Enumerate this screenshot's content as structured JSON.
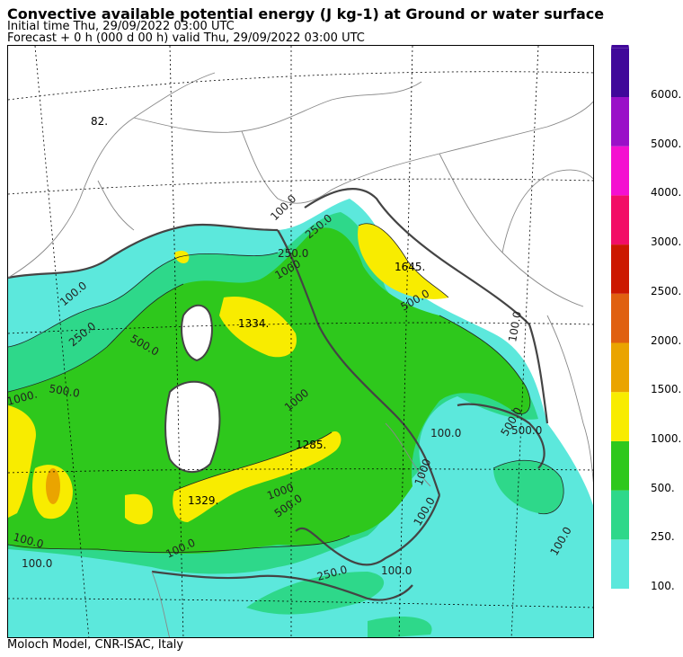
{
  "header": {
    "title": "Convective available potential energy (J kg-1) at Ground or water surface",
    "initial_time": "Initial time  Thu, 29/09/2022  03:00 UTC",
    "forecast": "Forecast  +    0 h  (000 d 00 h)  valid Thu, 29/09/2022 03:00 UTC"
  },
  "footer": {
    "credit": "Moloch Model, CNR-ISAC, Italy"
  },
  "colorbar": {
    "levels": [
      {
        "label": "100.",
        "color": "#5ce8dc"
      },
      {
        "label": "250.",
        "color": "#2ed88a"
      },
      {
        "label": "500.",
        "color": "#2ec81c"
      },
      {
        "label": "1000.",
        "color": "#f8ec00"
      },
      {
        "label": "1500.",
        "color": "#eaa400"
      },
      {
        "label": "2000.",
        "color": "#e06010"
      },
      {
        "label": "2500.",
        "color": "#cc1800"
      },
      {
        "label": "3000.",
        "color": "#f20e66"
      },
      {
        "label": "4000.",
        "color": "#f410d0"
      },
      {
        "label": "5000.",
        "color": "#9a10c8"
      },
      {
        "label": "6000.",
        "color": "#40089a"
      }
    ]
  },
  "map": {
    "contour_labels": [
      "100.0",
      "250.0",
      "500.0",
      "1000.",
      "100.0",
      "500.0",
      "1000",
      "1000",
      "500.0",
      "100.0",
      "250.0",
      "100.0",
      "100.0",
      "250.0",
      "1000",
      "500.0",
      "100.0",
      "500.0",
      "1000",
      "100.0",
      "100.0",
      "500.0",
      "250.0",
      "100.0",
      "100.0"
    ],
    "value_labels": [
      "82.",
      "1334.",
      "1645.",
      "1285.",
      "1329."
    ]
  }
}
